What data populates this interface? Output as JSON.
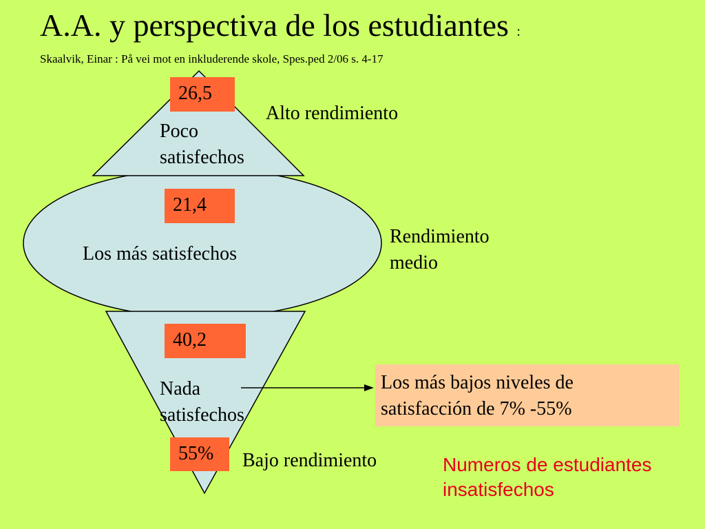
{
  "title": {
    "main": "A.A. y perspectiva de los estudiantes",
    "colon": ":",
    "reference": "Skaalvik, Einar : På vei mot en inkluderende skole, Spes.ped 2/06 s. 4-17"
  },
  "levels": {
    "top": {
      "value": "26,5",
      "group_line1": "Poco",
      "group_line2": "satisfechos",
      "performance": "Alto rendimiento"
    },
    "middle": {
      "value": "21,4",
      "group": "Los más satisfechos",
      "performance_line1": "Rendimiento",
      "performance_line2": "medio"
    },
    "bottom": {
      "value": "40,2",
      "group_line1": "Nada",
      "group_line2": "satisfechos",
      "performance": "Bajo rendimiento",
      "extra_value": "55%"
    }
  },
  "note": {
    "line1": "Los más bajos niveles de",
    "line2": "satisfacción de 7% -55%"
  },
  "footer": {
    "line1": "Numeros de estudiantes",
    "line2": "insatisfechos"
  },
  "colors": {
    "background": "#ccff66",
    "shape_fill": "#cce6e6",
    "badge": "#ff6633",
    "note_box": "#ffcc99",
    "footer_text": "#e8001c"
  }
}
